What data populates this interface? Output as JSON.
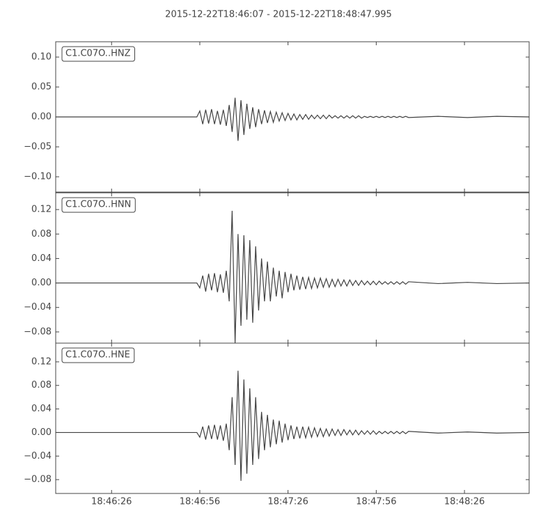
{
  "chart_data": [
    {
      "type": "line",
      "title": "2015-12-22T18:46:07  -  2015-12-22T18:48:47.995",
      "x": [
        0,
        30,
        48,
        49,
        50,
        51,
        52,
        53,
        54,
        55,
        56,
        57,
        58,
        59,
        60,
        61,
        62,
        63,
        64,
        65,
        66,
        67,
        68,
        69,
        70,
        71,
        72,
        73,
        74,
        75,
        76,
        77,
        78,
        79,
        80,
        81,
        82,
        83,
        84,
        85,
        86,
        87,
        88,
        89,
        90,
        91,
        92,
        93,
        94,
        95,
        96,
        97,
        98,
        99,
        100,
        101,
        102,
        103,
        104,
        105,
        106,
        107,
        108,
        109,
        110,
        111,
        112,
        113,
        114,
        115,
        116,
        117,
        118,
        119,
        120,
        130,
        140,
        150,
        160.995
      ],
      "xlim": [
        0,
        160.995
      ],
      "ylim": [
        -0.1256,
        0.1256
      ],
      "yticks": [
        {
          "value": -0.1,
          "label": "−0.10"
        },
        {
          "value": -0.05,
          "label": "−0.05"
        },
        {
          "value": 0,
          "label": "0.00"
        },
        0.05,
        {
          "value": 0.1,
          "label": "0.10"
        }
      ],
      "series": [
        {
          "name": "C1.C07O..HNZ",
          "color": "#404040",
          "values": [
            0,
            0,
            0,
            0.01,
            -0.012,
            0.012,
            -0.011,
            0.013,
            -0.012,
            0.01,
            -0.013,
            0.012,
            -0.015,
            0.02,
            -0.025,
            0.032,
            -0.04,
            0.028,
            -0.03,
            0.022,
            -0.02,
            0.016,
            -0.017,
            0.013,
            -0.012,
            0.011,
            -0.01,
            0.009,
            -0.009,
            0.008,
            -0.007,
            0.007,
            -0.006,
            0.006,
            -0.005,
            0.005,
            -0.005,
            0.004,
            -0.004,
            0.004,
            -0.004,
            0.003,
            -0.003,
            0.003,
            -0.003,
            0.003,
            -0.003,
            0.003,
            -0.002,
            0.002,
            -0.002,
            0.002,
            -0.002,
            0.002,
            -0.002,
            0.002,
            -0.002,
            0.002,
            -0.002,
            0.001,
            -0.001,
            0.001,
            -0.001,
            0.001,
            -0.001,
            0.001,
            -0.001,
            0.001,
            -0.001,
            0.001,
            -0.001,
            0.001,
            -0.001,
            0.001,
            -0.001,
            0.001,
            -0.001,
            0.001,
            0
          ]
        }
      ]
    },
    {
      "type": "line",
      "x": [
        0,
        30,
        48,
        49,
        50,
        51,
        52,
        53,
        54,
        55,
        56,
        57,
        58,
        59,
        60,
        61,
        62,
        63,
        64,
        65,
        66,
        67,
        68,
        69,
        70,
        71,
        72,
        73,
        74,
        75,
        76,
        77,
        78,
        79,
        80,
        81,
        82,
        83,
        84,
        85,
        86,
        87,
        88,
        89,
        90,
        91,
        92,
        93,
        94,
        95,
        96,
        97,
        98,
        99,
        100,
        101,
        102,
        103,
        104,
        105,
        106,
        107,
        108,
        109,
        110,
        111,
        112,
        113,
        114,
        115,
        116,
        117,
        118,
        119,
        120,
        130,
        140,
        150,
        160.995
      ],
      "xlim": [
        0,
        160.995
      ],
      "ylim": [
        -0.0983,
        0.1474
      ],
      "yticks": [
        {
          "value": -0.08,
          "label": "−0.08"
        },
        {
          "value": -0.04,
          "label": "−0.04"
        },
        {
          "value": 0,
          "label": "0.00"
        },
        0.04,
        0.08,
        0.12
      ],
      "series": [
        {
          "name": "C1.C07O..HNN",
          "color": "#404040",
          "values": [
            0,
            0,
            0,
            -0.008,
            0.012,
            -0.014,
            0.015,
            -0.012,
            0.016,
            -0.015,
            0.014,
            -0.016,
            0.02,
            -0.03,
            0.118,
            -0.098,
            0.08,
            -0.07,
            0.078,
            -0.06,
            0.07,
            -0.065,
            0.06,
            -0.045,
            0.04,
            -0.03,
            0.035,
            -0.03,
            0.025,
            -0.022,
            0.02,
            -0.025,
            0.018,
            -0.015,
            0.015,
            -0.012,
            0.012,
            -0.011,
            0.01,
            -0.01,
            0.009,
            -0.009,
            0.008,
            -0.008,
            0.008,
            -0.007,
            0.007,
            -0.007,
            0.006,
            -0.006,
            0.006,
            -0.005,
            0.005,
            -0.005,
            0.005,
            -0.004,
            0.004,
            -0.004,
            0.004,
            -0.003,
            0.003,
            -0.003,
            0.003,
            -0.003,
            0.003,
            -0.002,
            0.002,
            -0.002,
            0.002,
            -0.002,
            0.002,
            -0.002,
            0.002,
            -0.002,
            0.002,
            -0.001,
            0.001,
            -0.001,
            0
          ]
        }
      ]
    },
    {
      "type": "line",
      "x": [
        0,
        30,
        48,
        49,
        50,
        51,
        52,
        53,
        54,
        55,
        56,
        57,
        58,
        59,
        60,
        61,
        62,
        63,
        64,
        65,
        66,
        67,
        68,
        69,
        70,
        71,
        72,
        73,
        74,
        75,
        76,
        77,
        78,
        79,
        80,
        81,
        82,
        83,
        84,
        85,
        86,
        87,
        88,
        89,
        90,
        91,
        92,
        93,
        94,
        95,
        96,
        97,
        98,
        99,
        100,
        101,
        102,
        103,
        104,
        105,
        106,
        107,
        108,
        109,
        110,
        111,
        112,
        113,
        114,
        115,
        116,
        117,
        118,
        119,
        120,
        130,
        140,
        150,
        160.995
      ],
      "xlim": [
        0,
        160.995
      ],
      "xticks": [
        {
          "value": 19,
          "label": "18:46:26"
        },
        {
          "value": 49,
          "label": "18:46:56"
        },
        {
          "value": 79,
          "label": "18:47:26"
        },
        {
          "value": 109,
          "label": "18:47:56"
        },
        {
          "value": 139,
          "label": "18:48:26"
        }
      ],
      "ylim": [
        -0.1035,
        0.1518
      ],
      "yticks": [
        {
          "value": -0.08,
          "label": "−0.08"
        },
        {
          "value": -0.04,
          "label": "−0.04"
        },
        {
          "value": 0,
          "label": "0.00"
        },
        0.04,
        0.08,
        0.12
      ],
      "series": [
        {
          "name": "C1.C07O..HNE",
          "color": "#404040",
          "values": [
            0,
            0,
            0,
            -0.008,
            0.01,
            -0.012,
            0.012,
            -0.011,
            0.013,
            -0.012,
            0.012,
            -0.014,
            0.015,
            -0.03,
            0.06,
            -0.055,
            0.105,
            -0.082,
            0.09,
            -0.07,
            0.075,
            -0.055,
            0.06,
            -0.045,
            0.035,
            -0.03,
            0.03,
            -0.025,
            0.022,
            -0.02,
            0.02,
            -0.017,
            0.015,
            -0.013,
            0.012,
            -0.011,
            0.01,
            -0.01,
            0.01,
            -0.009,
            0.009,
            -0.008,
            0.008,
            -0.007,
            0.007,
            -0.007,
            0.006,
            -0.006,
            0.006,
            -0.005,
            0.005,
            -0.005,
            0.005,
            -0.004,
            0.004,
            -0.004,
            0.004,
            -0.004,
            0.003,
            -0.003,
            0.003,
            -0.003,
            0.003,
            -0.003,
            0.002,
            -0.002,
            0.002,
            -0.002,
            0.002,
            -0.002,
            0.002,
            -0.002,
            0.002,
            -0.002,
            0.002,
            -0.001,
            0.001,
            -0.001,
            0
          ]
        }
      ]
    }
  ]
}
